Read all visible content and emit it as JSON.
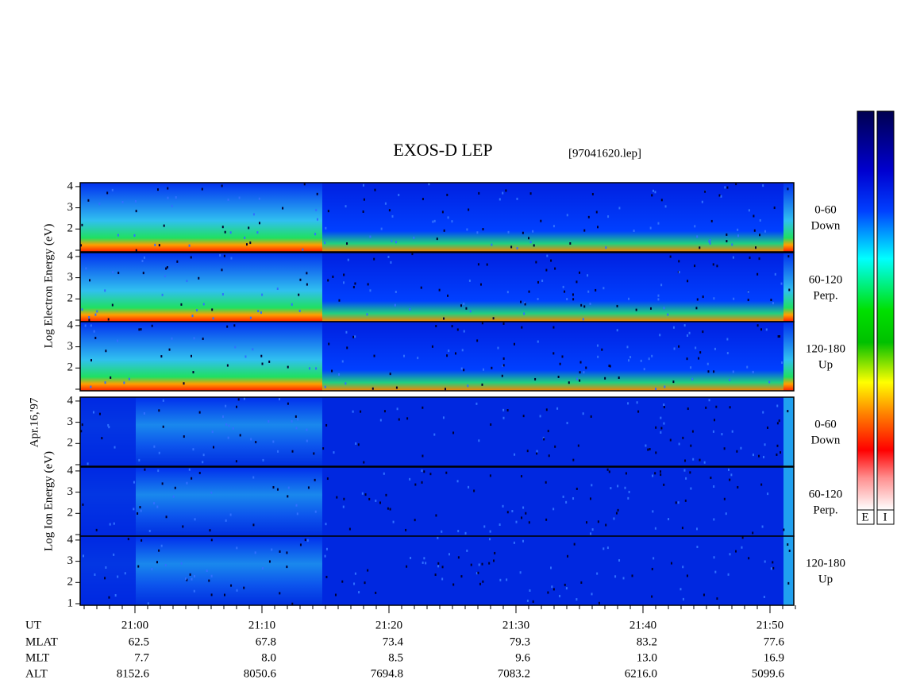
{
  "title": "EXOS-D LEP",
  "file": "[97041620.lep]",
  "date": "Apr.16,'97",
  "electron": {
    "ylabel": "Log  Electron  Energy (eV)",
    "panels": [
      {
        "angle": "0-60",
        "dir": "Down",
        "yticks": [
          2,
          3,
          4
        ]
      },
      {
        "angle": "60-120",
        "dir": "Perp.",
        "yticks": [
          2,
          3,
          4
        ]
      },
      {
        "angle": "120-180",
        "dir": "Up",
        "yticks": [
          2,
          3,
          4
        ]
      }
    ]
  },
  "ion": {
    "ylabel": "Log  Ion  Energy (eV)",
    "panels": [
      {
        "angle": "0-60",
        "dir": "Down",
        "yticks": [
          2,
          3,
          4
        ]
      },
      {
        "angle": "60-120",
        "dir": "Perp.",
        "yticks": [
          2,
          3,
          4
        ]
      },
      {
        "angle": "120-180",
        "dir": "Up",
        "yticks": [
          1,
          2,
          3,
          4
        ]
      }
    ]
  },
  "colorbars": [
    "E",
    "I"
  ],
  "ephemeris": {
    "rows": [
      {
        "name": "UT",
        "values": [
          "21:00",
          "21:10",
          "21:20",
          "21:30",
          "21:40",
          "21:50"
        ]
      },
      {
        "name": "MLAT",
        "values": [
          "62.5",
          "67.8",
          "73.4",
          "79.3",
          "83.2",
          "77.6"
        ]
      },
      {
        "name": "MLT",
        "values": [
          "7.7",
          "8.0",
          "8.5",
          "9.6",
          "13.0",
          "16.9"
        ]
      },
      {
        "name": "ALT",
        "values": [
          "8152.6",
          "8050.6",
          "7694.8",
          "7083.2",
          "6216.0",
          "5099.6"
        ]
      }
    ]
  }
}
